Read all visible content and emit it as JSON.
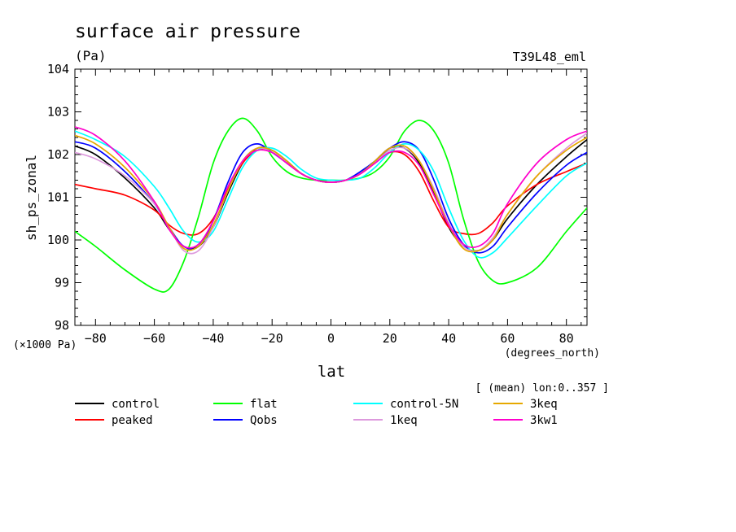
{
  "chart_data": {
    "type": "line",
    "title": "surface air pressure",
    "units": "(Pa)",
    "run_label": "T39L48_eml",
    "ylabel": "sh_ps_zonal",
    "xlabel": "lat",
    "x_units": "(degrees_north)",
    "y_scale_note": "(×1000 Pa)",
    "mean_note": "[ (mean) lon:0..357 ]",
    "xlim": [
      -87,
      87
    ],
    "ylim": [
      98,
      104
    ],
    "x_ticks": [
      -80,
      -60,
      -40,
      -20,
      0,
      20,
      40,
      60,
      80
    ],
    "x_tick_labels": [
      "−80",
      "−60",
      "−40",
      "−20",
      "0",
      "20",
      "40",
      "60",
      "80"
    ],
    "y_ticks": [
      98,
      99,
      100,
      101,
      102,
      103,
      104
    ],
    "y_tick_labels": [
      "98",
      "99",
      "100",
      "101",
      "102",
      "103",
      "104"
    ],
    "x": [
      -87,
      -80,
      -70,
      -60,
      -55,
      -50,
      -45,
      -40,
      -35,
      -30,
      -25,
      -20,
      -15,
      -10,
      -5,
      0,
      5,
      10,
      15,
      20,
      25,
      30,
      35,
      40,
      45,
      50,
      55,
      60,
      70,
      80,
      87
    ],
    "series": [
      {
        "name": "control",
        "color": "#000000",
        "values": [
          102.2,
          102.0,
          101.45,
          100.75,
          100.25,
          99.85,
          99.85,
          100.3,
          101.1,
          101.8,
          102.15,
          102.1,
          101.85,
          101.55,
          101.4,
          101.35,
          101.4,
          101.55,
          101.85,
          102.15,
          102.15,
          101.8,
          101.1,
          100.3,
          99.85,
          99.75,
          100.0,
          100.5,
          101.3,
          101.95,
          102.35
        ]
      },
      {
        "name": "peaked",
        "color": "#ff0000",
        "values": [
          101.3,
          101.2,
          101.05,
          100.7,
          100.35,
          100.15,
          100.15,
          100.5,
          101.2,
          101.8,
          102.1,
          102.05,
          101.8,
          101.55,
          101.4,
          101.35,
          101.4,
          101.55,
          101.8,
          102.05,
          102.0,
          101.6,
          100.9,
          100.3,
          100.15,
          100.15,
          100.4,
          100.8,
          101.3,
          101.6,
          101.8
        ]
      },
      {
        "name": "flat",
        "color": "#00ff00",
        "values": [
          100.2,
          99.85,
          99.3,
          98.85,
          98.85,
          99.5,
          100.55,
          101.8,
          102.55,
          102.85,
          102.55,
          101.95,
          101.6,
          101.45,
          101.4,
          101.4,
          101.4,
          101.45,
          101.6,
          101.95,
          102.55,
          102.8,
          102.55,
          101.8,
          100.5,
          99.5,
          99.05,
          99.0,
          99.35,
          100.2,
          100.75
        ]
      },
      {
        "name": "Qobs",
        "color": "#0000ff",
        "values": [
          102.3,
          102.15,
          101.6,
          100.85,
          100.3,
          99.85,
          99.85,
          100.45,
          101.35,
          102.05,
          102.25,
          102.05,
          101.8,
          101.55,
          101.4,
          101.35,
          101.4,
          101.6,
          101.85,
          102.15,
          102.3,
          102.1,
          101.4,
          100.5,
          99.9,
          99.7,
          99.85,
          100.3,
          101.1,
          101.75,
          102.05
        ]
      },
      {
        "name": "control-5N",
        "color": "#00ffff",
        "values": [
          102.55,
          102.35,
          101.95,
          101.25,
          100.75,
          100.2,
          99.95,
          100.2,
          100.95,
          101.7,
          102.1,
          102.15,
          101.95,
          101.65,
          101.45,
          101.4,
          101.4,
          101.45,
          101.7,
          102.05,
          102.25,
          102.1,
          101.6,
          100.75,
          100.0,
          99.6,
          99.7,
          100.05,
          100.8,
          101.5,
          101.8
        ]
      },
      {
        "name": "1keq",
        "color": "#dd99dd",
        "values": [
          102.05,
          101.9,
          101.5,
          100.85,
          100.3,
          99.75,
          99.75,
          100.3,
          101.15,
          101.85,
          102.15,
          102.05,
          101.8,
          101.55,
          101.4,
          101.35,
          101.4,
          101.55,
          101.8,
          102.1,
          102.15,
          101.85,
          101.2,
          100.4,
          99.85,
          99.75,
          100.05,
          100.6,
          101.5,
          102.15,
          102.5
        ]
      },
      {
        "name": "3keq",
        "color": "#e6a800",
        "values": [
          102.45,
          102.25,
          101.7,
          100.9,
          100.3,
          99.8,
          99.85,
          100.35,
          101.15,
          101.85,
          102.15,
          102.1,
          101.85,
          101.55,
          101.4,
          101.35,
          101.4,
          101.55,
          101.85,
          102.15,
          102.2,
          101.85,
          101.15,
          100.35,
          99.8,
          99.75,
          100.0,
          100.6,
          101.5,
          102.1,
          102.4
        ]
      },
      {
        "name": "3kw1",
        "color": "#ff00cc",
        "values": [
          102.65,
          102.45,
          101.85,
          100.9,
          100.25,
          99.85,
          99.9,
          100.45,
          101.25,
          101.85,
          102.1,
          102.05,
          101.8,
          101.55,
          101.4,
          101.35,
          101.4,
          101.55,
          101.8,
          102.05,
          102.05,
          101.75,
          101.05,
          100.35,
          99.9,
          99.85,
          100.15,
          100.85,
          101.8,
          102.35,
          102.55
        ]
      }
    ],
    "legend": [
      {
        "label": "control",
        "color": "#000000"
      },
      {
        "label": "flat",
        "color": "#00ff00"
      },
      {
        "label": "control-5N",
        "color": "#00ffff"
      },
      {
        "label": "3keq",
        "color": "#e6a800"
      },
      {
        "label": "peaked",
        "color": "#ff0000"
      },
      {
        "label": "Qobs",
        "color": "#0000ff"
      },
      {
        "label": "1keq",
        "color": "#dd99dd"
      },
      {
        "label": "3kw1",
        "color": "#ff00cc"
      }
    ]
  }
}
